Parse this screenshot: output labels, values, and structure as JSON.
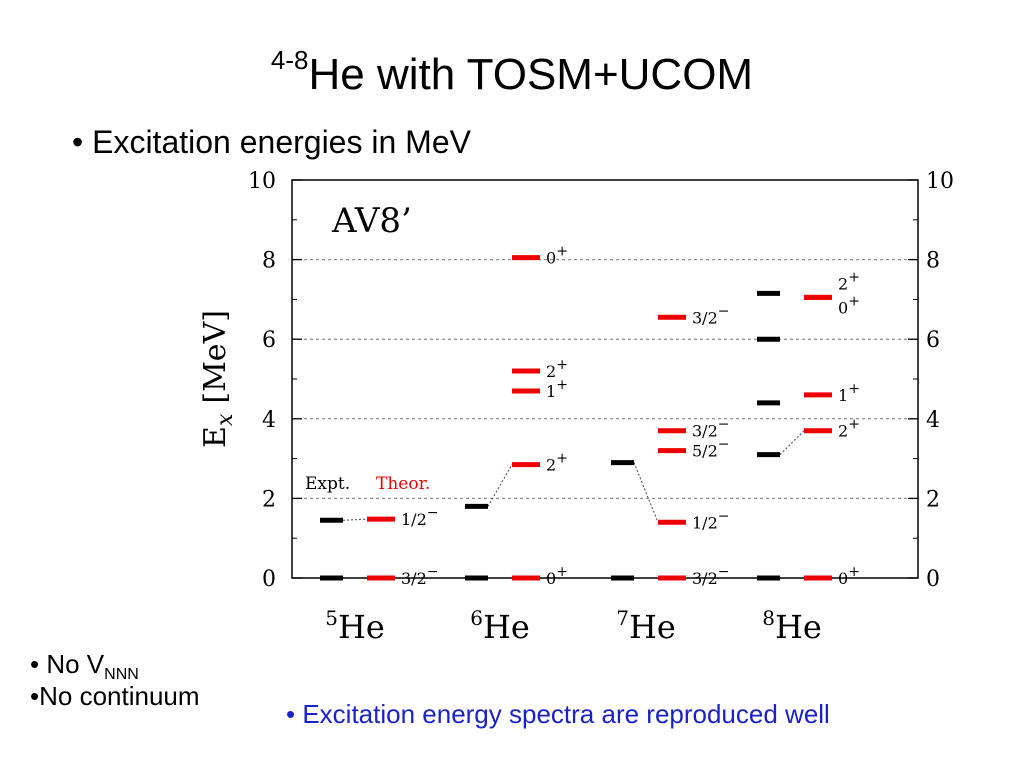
{
  "slide": {
    "title_prefix": "4-8",
    "title_main": "He  with TOSM+UCOM",
    "bullet": "• Excitation energies in MeV",
    "note1_prefix": "• No V",
    "note1_sub": "NNN",
    "note2": "•No continuum",
    "conclusion": "• Excitation energy spectra are reproduced well"
  },
  "chart_data": {
    "type": "level-scheme",
    "panel_label": "AV8’",
    "ylabel_main": "E",
    "ylabel_sub": "x",
    "ylabel_unit": "[MeV]",
    "ylim": [
      0,
      10
    ],
    "yticks": [
      0,
      2,
      4,
      6,
      8,
      10
    ],
    "grid": true,
    "legend": {
      "expt": "Expt.",
      "theor": "Theor.",
      "placement": "lower-left"
    },
    "colors": {
      "expt": "#000000",
      "theor": "#ee0000",
      "grid": "#777777"
    },
    "nuclei": [
      {
        "mass": "5",
        "symbol": "He",
        "expt": [
          0,
          1.45
        ],
        "theor": [
          {
            "energy": 0,
            "spin": "3/2",
            "parity": "−"
          },
          {
            "energy": 1.48,
            "spin": "1/2",
            "parity": "−"
          }
        ]
      },
      {
        "mass": "6",
        "symbol": "He",
        "expt": [
          0,
          1.8
        ],
        "theor": [
          {
            "energy": 0,
            "spin": "0",
            "parity": "+"
          },
          {
            "energy": 2.85,
            "spin": "2",
            "parity": "+"
          },
          {
            "energy": 4.7,
            "spin": "1",
            "parity": "+"
          },
          {
            "energy": 5.2,
            "spin": "2",
            "parity": "+"
          },
          {
            "energy": 8.05,
            "spin": "0",
            "parity": "+"
          }
        ]
      },
      {
        "mass": "7",
        "symbol": "He",
        "expt": [
          0,
          2.9
        ],
        "theor": [
          {
            "energy": 0,
            "spin": "3/2",
            "parity": "−"
          },
          {
            "energy": 1.4,
            "spin": "1/2",
            "parity": "−"
          },
          {
            "energy": 3.2,
            "spin": "5/2",
            "parity": "−"
          },
          {
            "energy": 3.7,
            "spin": "3/2",
            "parity": "−"
          },
          {
            "energy": 6.55,
            "spin": "3/2",
            "parity": "−"
          }
        ]
      },
      {
        "mass": "8",
        "symbol": "He",
        "expt": [
          0,
          3.1,
          4.4,
          6.0,
          7.15
        ],
        "theor": [
          {
            "energy": 0,
            "spin": "0",
            "parity": "+"
          },
          {
            "energy": 3.7,
            "spin": "2",
            "parity": "+"
          },
          {
            "energy": 4.6,
            "spin": "1",
            "parity": "+"
          },
          {
            "energy": 7.05,
            "spin": "0",
            "parity": "+"
          },
          {
            "energy": 7.05,
            "spin": "2",
            "parity": "+"
          }
        ]
      }
    ]
  }
}
